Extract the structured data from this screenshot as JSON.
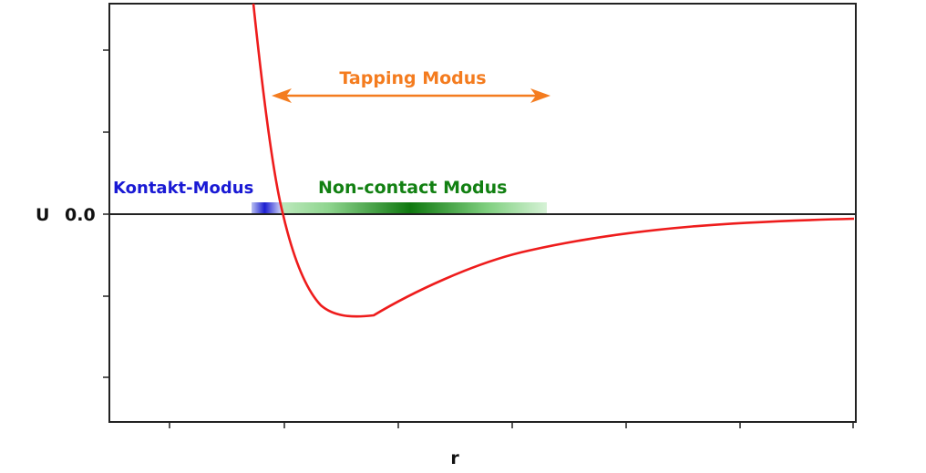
{
  "diagram": {
    "y_axis_label": "U",
    "y_zero_tick_label": "0.0",
    "x_axis_label": "r",
    "modes": {
      "contact": "Kontakt-Modus",
      "noncontact": "Non-contact Modus",
      "tapping": "Tapping Modus"
    }
  },
  "colors": {
    "curve": "#ee1c1c",
    "contact": "#1a1ad4",
    "noncontact": "#128012",
    "tapping": "#f47c1f",
    "axis": "#222222"
  }
}
